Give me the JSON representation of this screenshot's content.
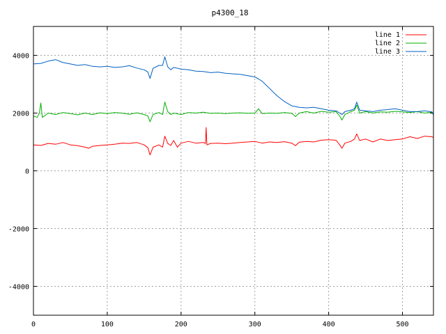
{
  "chart_data": {
    "type": "line",
    "title": "p4300_18",
    "xlim": [
      0,
      542
    ],
    "ylim": [
      -5000,
      5000
    ],
    "x_ticks": [
      0,
      100,
      200,
      300,
      400,
      500
    ],
    "y_ticks": [
      -4000,
      -2000,
      0,
      2000,
      4000
    ],
    "grid": true,
    "legend_position": "top-right",
    "series": [
      {
        "name": "line 1",
        "color": "#ff0000",
        "points": [
          [
            0,
            900
          ],
          [
            10,
            880
          ],
          [
            20,
            950
          ],
          [
            30,
            920
          ],
          [
            40,
            980
          ],
          [
            50,
            900
          ],
          [
            60,
            870
          ],
          [
            70,
            820
          ],
          [
            75,
            780
          ],
          [
            80,
            850
          ],
          [
            90,
            880
          ],
          [
            100,
            900
          ],
          [
            110,
            920
          ],
          [
            120,
            960
          ],
          [
            130,
            950
          ],
          [
            140,
            980
          ],
          [
            150,
            900
          ],
          [
            155,
            800
          ],
          [
            158,
            550
          ],
          [
            162,
            820
          ],
          [
            170,
            900
          ],
          [
            175,
            820
          ],
          [
            178,
            1200
          ],
          [
            182,
            950
          ],
          [
            186,
            880
          ],
          [
            190,
            1050
          ],
          [
            195,
            820
          ],
          [
            200,
            960
          ],
          [
            210,
            1020
          ],
          [
            220,
            960
          ],
          [
            230,
            980
          ],
          [
            233,
            950
          ],
          [
            234,
            1500
          ],
          [
            235,
            900
          ],
          [
            240,
            950
          ],
          [
            250,
            960
          ],
          [
            260,
            940
          ],
          [
            270,
            960
          ],
          [
            280,
            980
          ],
          [
            290,
            1000
          ],
          [
            300,
            1020
          ],
          [
            310,
            960
          ],
          [
            320,
            1000
          ],
          [
            330,
            980
          ],
          [
            340,
            1010
          ],
          [
            350,
            960
          ],
          [
            355,
            870
          ],
          [
            360,
            990
          ],
          [
            370,
            1020
          ],
          [
            380,
            1000
          ],
          [
            390,
            1060
          ],
          [
            400,
            1080
          ],
          [
            410,
            1060
          ],
          [
            415,
            900
          ],
          [
            418,
            780
          ],
          [
            422,
            960
          ],
          [
            430,
            1020
          ],
          [
            435,
            1100
          ],
          [
            438,
            1280
          ],
          [
            442,
            1050
          ],
          [
            450,
            1100
          ],
          [
            460,
            1000
          ],
          [
            470,
            1100
          ],
          [
            480,
            1050
          ],
          [
            490,
            1080
          ],
          [
            500,
            1100
          ],
          [
            510,
            1180
          ],
          [
            520,
            1120
          ],
          [
            530,
            1200
          ],
          [
            540,
            1180
          ],
          [
            542,
            1150
          ]
        ]
      },
      {
        "name": "line 2",
        "color": "#00b000",
        "points": [
          [
            0,
            1900
          ],
          [
            5,
            1850
          ],
          [
            8,
            2000
          ],
          [
            10,
            2350
          ],
          [
            12,
            1850
          ],
          [
            20,
            2000
          ],
          [
            30,
            1950
          ],
          [
            40,
            2020
          ],
          [
            50,
            1980
          ],
          [
            60,
            1940
          ],
          [
            70,
            2000
          ],
          [
            80,
            1950
          ],
          [
            90,
            2010
          ],
          [
            100,
            1980
          ],
          [
            110,
            2020
          ],
          [
            120,
            2000
          ],
          [
            130,
            1960
          ],
          [
            140,
            2010
          ],
          [
            150,
            1950
          ],
          [
            155,
            1900
          ],
          [
            158,
            1700
          ],
          [
            162,
            1950
          ],
          [
            170,
            2020
          ],
          [
            175,
            1950
          ],
          [
            178,
            2380
          ],
          [
            182,
            2050
          ],
          [
            186,
            1950
          ],
          [
            190,
            2000
          ],
          [
            200,
            1950
          ],
          [
            210,
            2020
          ],
          [
            220,
            2000
          ],
          [
            230,
            2030
          ],
          [
            240,
            1990
          ],
          [
            250,
            2000
          ],
          [
            260,
            1980
          ],
          [
            270,
            2000
          ],
          [
            280,
            2010
          ],
          [
            290,
            1990
          ],
          [
            300,
            2000
          ],
          [
            305,
            2150
          ],
          [
            310,
            1980
          ],
          [
            320,
            2000
          ],
          [
            330,
            1990
          ],
          [
            340,
            2020
          ],
          [
            350,
            1990
          ],
          [
            355,
            1880
          ],
          [
            360,
            2000
          ],
          [
            370,
            2050
          ],
          [
            380,
            2000
          ],
          [
            390,
            2060
          ],
          [
            400,
            2030
          ],
          [
            410,
            2050
          ],
          [
            415,
            1900
          ],
          [
            418,
            1760
          ],
          [
            422,
            1950
          ],
          [
            430,
            2050
          ],
          [
            435,
            2100
          ],
          [
            438,
            2280
          ],
          [
            442,
            2000
          ],
          [
            450,
            2050
          ],
          [
            460,
            2000
          ],
          [
            470,
            2040
          ],
          [
            480,
            2030
          ],
          [
            490,
            2060
          ],
          [
            500,
            2040
          ],
          [
            510,
            2020
          ],
          [
            520,
            2050
          ],
          [
            530,
            2000
          ],
          [
            540,
            2030
          ],
          [
            542,
            1930
          ]
        ]
      },
      {
        "name": "line 3",
        "color": "#0060c0",
        "points": [
          [
            0,
            3700
          ],
          [
            10,
            3720
          ],
          [
            20,
            3800
          ],
          [
            30,
            3850
          ],
          [
            40,
            3750
          ],
          [
            50,
            3700
          ],
          [
            60,
            3650
          ],
          [
            70,
            3680
          ],
          [
            80,
            3620
          ],
          [
            90,
            3600
          ],
          [
            100,
            3620
          ],
          [
            110,
            3580
          ],
          [
            120,
            3600
          ],
          [
            130,
            3640
          ],
          [
            140,
            3560
          ],
          [
            150,
            3500
          ],
          [
            155,
            3420
          ],
          [
            158,
            3200
          ],
          [
            162,
            3550
          ],
          [
            170,
            3650
          ],
          [
            175,
            3650
          ],
          [
            178,
            3950
          ],
          [
            182,
            3600
          ],
          [
            186,
            3500
          ],
          [
            190,
            3580
          ],
          [
            200,
            3520
          ],
          [
            210,
            3500
          ],
          [
            220,
            3450
          ],
          [
            230,
            3440
          ],
          [
            240,
            3400
          ],
          [
            250,
            3420
          ],
          [
            260,
            3380
          ],
          [
            270,
            3360
          ],
          [
            280,
            3340
          ],
          [
            290,
            3300
          ],
          [
            300,
            3250
          ],
          [
            305,
            3180
          ],
          [
            310,
            3100
          ],
          [
            320,
            2850
          ],
          [
            330,
            2600
          ],
          [
            340,
            2400
          ],
          [
            350,
            2250
          ],
          [
            360,
            2200
          ],
          [
            370,
            2180
          ],
          [
            380,
            2200
          ],
          [
            390,
            2150
          ],
          [
            400,
            2100
          ],
          [
            410,
            2080
          ],
          [
            415,
            2000
          ],
          [
            418,
            1950
          ],
          [
            422,
            2050
          ],
          [
            430,
            2100
          ],
          [
            435,
            2150
          ],
          [
            438,
            2380
          ],
          [
            442,
            2100
          ],
          [
            450,
            2080
          ],
          [
            460,
            2050
          ],
          [
            470,
            2100
          ],
          [
            480,
            2120
          ],
          [
            490,
            2150
          ],
          [
            500,
            2100
          ],
          [
            510,
            2050
          ],
          [
            520,
            2050
          ],
          [
            530,
            2080
          ],
          [
            540,
            2040
          ],
          [
            542,
            1960
          ]
        ]
      }
    ]
  }
}
